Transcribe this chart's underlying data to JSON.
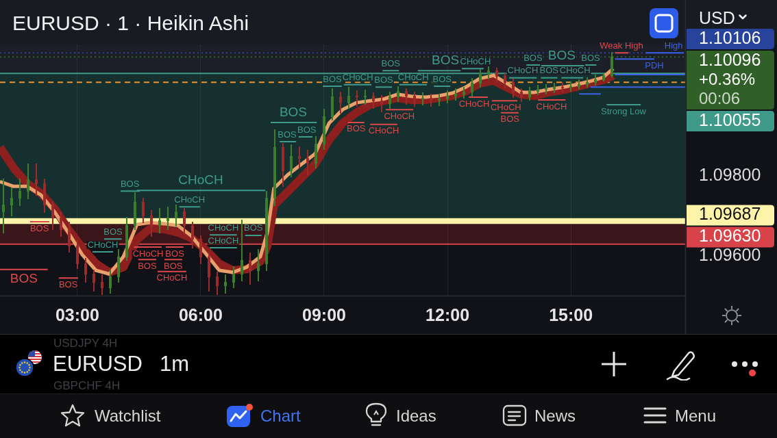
{
  "chart_data": {
    "type": "candlestick",
    "title": "EURUSD · 1 · Heikin Ashi",
    "x": [
      1.2,
      1.4,
      1.6,
      1.8,
      2,
      2.2,
      2.4,
      2.6,
      2.8,
      3,
      3.2,
      3.4,
      3.6,
      3.8,
      4,
      4.2,
      4.4,
      4.6,
      4.8,
      5,
      5.2,
      5.4,
      5.6,
      5.8,
      6,
      6.2,
      6.4,
      6.6,
      6.8,
      7,
      7.2,
      7.4,
      7.6,
      7.8,
      8,
      8.2,
      8.4,
      8.6,
      8.8,
      9,
      9.2,
      9.4,
      9.6,
      9.8,
      10,
      10.2,
      10.4,
      10.6,
      10.8,
      11,
      11.2,
      11.4,
      11.6,
      11.8,
      12,
      12.2,
      12.4,
      12.6,
      12.8,
      13,
      13.2,
      13.4,
      13.6,
      13.8,
      14,
      14.2,
      14.4,
      14.6,
      14.8,
      15,
      15.2,
      15.4,
      15.6,
      15.8,
      16
    ],
    "ohlc": [
      [
        1.0971,
        1.09791,
        1.09659,
        1.09727
      ],
      [
        1.09727,
        1.09769,
        1.09701,
        1.09744
      ],
      [
        1.09744,
        1.09791,
        1.09727,
        1.09761
      ],
      [
        1.09761,
        1.09829,
        1.09744,
        1.09791
      ],
      [
        1.09791,
        1.09829,
        1.09752,
        1.09781
      ],
      [
        1.09781,
        1.09791,
        1.0971,
        1.09727
      ],
      [
        1.09727,
        1.09735,
        1.09667,
        1.09696
      ],
      [
        1.09696,
        1.0971,
        1.0965,
        1.09667
      ],
      [
        1.09667,
        1.09684,
        1.09611,
        1.09625
      ],
      [
        1.09625,
        1.09638,
        1.0957,
        1.09582
      ],
      [
        1.09582,
        1.09594,
        1.09536,
        1.09556
      ],
      [
        1.09556,
        1.09565,
        1.09514,
        1.09536
      ],
      [
        1.09536,
        1.09553,
        1.09505,
        1.09522
      ],
      [
        1.09522,
        1.09565,
        1.09509,
        1.09548
      ],
      [
        1.09548,
        1.09616,
        1.09536,
        1.09599
      ],
      [
        1.09599,
        1.09696,
        1.0959,
        1.09676
      ],
      [
        1.09676,
        1.09757,
        1.09667,
        1.09735
      ],
      [
        1.09735,
        1.09744,
        1.09684,
        1.09701
      ],
      [
        1.09701,
        1.09713,
        1.0965,
        1.09676
      ],
      [
        1.09676,
        1.09718,
        1.09659,
        1.09689
      ],
      [
        1.09689,
        1.09722,
        1.09667,
        1.09696
      ],
      [
        1.09696,
        1.09727,
        1.09676,
        1.0971
      ],
      [
        1.0971,
        1.09718,
        1.09655,
        1.09676
      ],
      [
        1.09676,
        1.09684,
        1.09621,
        1.09642
      ],
      [
        1.09642,
        1.0965,
        1.09582,
        1.09599
      ],
      [
        1.09599,
        1.09607,
        1.09514,
        1.09548
      ],
      [
        1.09548,
        1.0956,
        1.09505,
        1.09526
      ],
      [
        1.09526,
        1.09553,
        1.09509,
        1.09536
      ],
      [
        1.09536,
        1.09573,
        1.09522,
        1.09556
      ],
      [
        1.09556,
        1.09689,
        1.09539,
        1.0959
      ],
      [
        1.0959,
        1.09607,
        1.09531,
        1.09565
      ],
      [
        1.09565,
        1.09616,
        1.09539,
        1.09582
      ],
      [
        1.09582,
        1.09761,
        1.09565,
        1.09744
      ],
      [
        1.09744,
        1.09914,
        1.09727,
        1.09871
      ],
      [
        1.09871,
        1.0988,
        1.09774,
        1.09812
      ],
      [
        1.09812,
        1.09877,
        1.09798,
        1.09849
      ],
      [
        1.09849,
        1.09871,
        1.0982,
        1.09843
      ],
      [
        1.09843,
        1.09863,
        1.09803,
        1.09832
      ],
      [
        1.09832,
        1.09897,
        1.0982,
        1.0988
      ],
      [
        1.0988,
        1.09965,
        1.09866,
        1.09948
      ],
      [
        1.09948,
        1.10016,
        1.0994,
        1.09996
      ],
      [
        1.09996,
        1.10008,
        1.09957,
        1.09982
      ],
      [
        1.09982,
        1.1002,
        1.09969,
        1.09999
      ],
      [
        1.09999,
        1.10011,
        1.09974,
        1.09996
      ],
      [
        1.09996,
        1.10013,
        1.09979,
        1.09999
      ],
      [
        1.09999,
        1.10006,
        1.09969,
        1.09986
      ],
      [
        1.09986,
        1.09999,
        1.0996,
        1.09979
      ],
      [
        1.09979,
        1.10008,
        1.09969,
        1.09996
      ],
      [
        1.09996,
        1.10021,
        1.09986,
        1.10011
      ],
      [
        1.10011,
        1.10016,
        1.09979,
        1.09999
      ],
      [
        1.09999,
        1.10008,
        1.09974,
        1.09991
      ],
      [
        1.09991,
        1.10006,
        1.09977,
        1.09994
      ],
      [
        1.09994,
        1.10003,
        1.09974,
        1.09989
      ],
      [
        1.09989,
        1.10003,
        1.09975,
        1.09991
      ],
      [
        1.09991,
        1.10011,
        1.09982,
        1.09999
      ],
      [
        1.09999,
        1.10016,
        1.09989,
        1.10004
      ],
      [
        1.10004,
        1.1002,
        1.09994,
        1.10008
      ],
      [
        1.10008,
        1.10042,
        1.09999,
        1.1003
      ],
      [
        1.1003,
        1.10064,
        1.10021,
        1.10054
      ],
      [
        1.10054,
        1.10071,
        1.10042,
        1.10062
      ],
      [
        1.10062,
        1.10067,
        1.10033,
        1.10047
      ],
      [
        1.10047,
        1.10054,
        1.1002,
        1.10033
      ],
      [
        1.10033,
        1.1004,
        1.09996,
        1.10008
      ],
      [
        1.10008,
        1.10016,
        1.09986,
        1.09996
      ],
      [
        1.09996,
        1.1002,
        1.09989,
        1.10011
      ],
      [
        1.10011,
        1.10025,
        1.10003,
        1.10016
      ],
      [
        1.10016,
        1.10027,
        1.10004,
        1.10018
      ],
      [
        1.10018,
        1.1003,
        1.10008,
        1.10021
      ],
      [
        1.10021,
        1.10032,
        1.1001,
        1.1002
      ],
      [
        1.1002,
        1.10033,
        1.10011,
        1.10023
      ],
      [
        1.10023,
        1.10038,
        1.10016,
        1.10028
      ],
      [
        1.10028,
        1.10044,
        1.10021,
        1.10033
      ],
      [
        1.10033,
        1.1005,
        1.10027,
        1.1004
      ],
      [
        1.1004,
        1.10054,
        1.10037,
        1.1005
      ],
      [
        1.1005,
        1.10106,
        1.10047,
        1.10096
      ]
    ],
    "colors": [
      "#3b7f2d",
      "#3b7f2d",
      "#3b7f2d",
      "#3b7f2d",
      "#9e2b2b",
      "#9e2b2b",
      "#9e2b2b",
      "#9e2b2b",
      "#9e2b2b",
      "#9e2b2b",
      "#9e2b2b",
      "#9e2b2b",
      "#9e2b2b",
      "#3b7f2d",
      "#3b7f2d",
      "#3b7f2d",
      "#3b7f2d",
      "#9e2b2b",
      "#9e2b2b",
      "#3b7f2d",
      "#3b7f2d",
      "#3b7f2d",
      "#9e2b2b",
      "#9e2b2b",
      "#9e2b2b",
      "#9e2b2b",
      "#9e2b2b",
      "#3b7f2d",
      "#3b7f2d",
      "#3b7f2d",
      "#9e2b2b",
      "#3b7f2d",
      "#3b7f2d",
      "#3b7f2d",
      "#9e2b2b",
      "#3b7f2d",
      "#9e2b2b",
      "#9e2b2b",
      "#3b7f2d",
      "#3b7f2d",
      "#3b7f2d",
      "#9e2b2b",
      "#3b7f2d",
      "#9e2b2b",
      "#3b7f2d",
      "#9e2b2b",
      "#9e2b2b",
      "#3b7f2d",
      "#3b7f2d",
      "#9e2b2b",
      "#9e2b2b",
      "#3b7f2d",
      "#9e2b2b",
      "#3b7f2d",
      "#3b7f2d",
      "#3b7f2d",
      "#3b7f2d",
      "#3b7f2d",
      "#3b7f2d",
      "#3b7f2d",
      "#9e2b2b",
      "#9e2b2b",
      "#9e2b2b",
      "#9e2b2b",
      "#3b7f2d",
      "#3b7f2d",
      "#3b7f2d",
      "#3b7f2d",
      "#9e2b2b",
      "#3b7f2d",
      "#3b7f2d",
      "#3b7f2d",
      "#3b7f2d",
      "#3b7f2d",
      "#3b7f2d"
    ],
    "series": [
      {
        "type": "line",
        "color": "#8e1f1f",
        "x": [
          1.12,
          1.45,
          1.78,
          2.12,
          2.45,
          2.78,
          3.12,
          3.45,
          3.78,
          4.12,
          4.45,
          4.78,
          5.12,
          5.45,
          5.78,
          6.12,
          6.45,
          6.78,
          7.12,
          7.45,
          7.62,
          7.78,
          8.12,
          8.45,
          8.78,
          9.12,
          9.45,
          9.78,
          10.12,
          10.45,
          10.78,
          11.12,
          11.45,
          11.78,
          12.12,
          12.45,
          12.78,
          13.12,
          13.45,
          13.78,
          14.12,
          14.45,
          14.78,
          15.12,
          15.45,
          15.78,
          16.03
        ],
        "values": [
          1.09871,
          1.0982,
          1.09781,
          1.09756,
          1.09718,
          1.09667,
          1.09621,
          1.09582,
          1.0956,
          1.09573,
          1.09642,
          1.0967,
          1.09667,
          1.09659,
          1.09645,
          1.09616,
          1.09582,
          1.09565,
          1.09568,
          1.09587,
          1.09625,
          1.09727,
          1.09761,
          1.09795,
          1.09829,
          1.09889,
          1.09931,
          1.09957,
          1.09977,
          1.09987,
          1.09994,
          1.09989,
          1.09989,
          1.09994,
          1.09999,
          1.10011,
          1.1003,
          1.10037,
          1.1002,
          1.10003,
          1.09999,
          1.10008,
          1.10013,
          1.10021,
          1.1003,
          1.10038,
          1.1005
        ]
      },
      {
        "type": "line",
        "color": "#e8a06c",
        "x": [
          1.12,
          1.45,
          1.78,
          2.12,
          2.45,
          2.78,
          3.12,
          3.45,
          3.78,
          4.12,
          4.45,
          4.78,
          5.12,
          5.45,
          5.78,
          6.12,
          6.45,
          6.78,
          7.12,
          7.45,
          7.62,
          7.78,
          8.12,
          8.45,
          8.78,
          9.12,
          9.45,
          9.78,
          10.12,
          10.45,
          10.78,
          11.12,
          11.45,
          11.78,
          12.12,
          12.45,
          12.78,
          13.12,
          13.45,
          13.78,
          14.12,
          14.45,
          14.78,
          15.12,
          15.45,
          15.78,
          16.03
        ],
        "values": [
          1.09786,
          1.09774,
          1.09774,
          1.09752,
          1.0971,
          1.09659,
          1.09604,
          1.09565,
          1.09556,
          1.09599,
          1.09679,
          1.09684,
          1.09681,
          1.09676,
          1.0965,
          1.09607,
          1.09565,
          1.0956,
          1.09573,
          1.09599,
          1.09659,
          1.09769,
          1.09803,
          1.09829,
          1.09855,
          1.09931,
          1.09965,
          1.09982,
          1.09987,
          1.09991,
          1.10003,
          1.09998,
          1.09996,
          1.09999,
          1.10006,
          1.10021,
          1.10042,
          1.1005,
          1.1003,
          1.10008,
          1.10008,
          1.10015,
          1.1002,
          1.10027,
          1.10035,
          1.10045,
          1.10067
        ]
      },
      {
        "type": "line",
        "color": "#3f9c8c",
        "x": [
          3.37,
          3.62,
          3.87,
          null,
          3.65,
          3.87,
          4.08,
          null,
          4.05,
          4.28,
          4.52,
          null,
          4.45,
          6.0,
          7.57,
          null,
          5.48,
          5.73,
          5.98,
          null,
          6.22,
          6.55,
          6.88,
          null,
          6.22,
          6.55,
          6.88,
          null,
          7.08,
          7.28,
          7.48,
          null,
          7.7,
          8.25,
          8.82,
          null,
          7.92,
          8.1,
          8.32,
          null,
          8.38,
          8.58,
          8.72,
          null,
          8.97,
          9.2,
          9.43,
          null,
          9.48,
          9.82,
          10.15,
          null,
          10.25,
          10.45,
          10.65,
          null,
          10.42,
          10.62,
          10.82,
          null,
          10.83,
          11.17,
          11.5,
          null,
          11.28,
          11.95,
          12.32,
          null,
          11.67,
          11.87,
          12.07,
          null,
          12.35,
          12.68,
          12.88,
          null,
          13.5,
          13.83,
          14.17,
          null,
          13.92,
          14.08,
          14.25,
          null,
          14.27,
          14.47,
          14.67,
          null,
          14.28,
          14.78,
          15.32,
          null,
          14.77,
          15.1,
          15.3,
          null,
          15.35,
          15.48,
          15.62,
          null,
          15.87,
          16.28,
          16.7
        ],
        "values": [
          1.09611,
          1.09611,
          1.09611,
          null,
          1.09643,
          1.09643,
          1.09643,
          null,
          1.09762,
          1.09762,
          1.09762,
          null,
          1.09764,
          1.09764,
          1.09764,
          null,
          1.09723,
          1.09723,
          1.09723,
          null,
          1.09653,
          1.09653,
          1.09653,
          null,
          1.09621,
          1.09621,
          1.09621,
          null,
          1.09652,
          1.09652,
          1.09652,
          null,
          1.09933,
          1.09933,
          1.09933,
          null,
          1.09885,
          1.09885,
          1.09885,
          null,
          1.09897,
          1.09897,
          1.09897,
          null,
          1.10023,
          1.10023,
          1.10023,
          null,
          1.10027,
          1.10027,
          1.10027,
          null,
          1.10021,
          1.10021,
          1.10021,
          null,
          1.10062,
          1.10062,
          1.10062,
          null,
          1.10027,
          1.10027,
          1.10027,
          null,
          1.10062,
          1.10062,
          1.10062,
          null,
          1.10023,
          1.10023,
          1.10023,
          null,
          1.10067,
          1.10067,
          1.10067,
          null,
          1.10044,
          1.10044,
          1.10044,
          null,
          1.10076,
          1.10076,
          1.10076,
          null,
          1.10044,
          1.10044,
          1.10044,
          null,
          1.10074,
          1.10074,
          1.10074,
          null,
          1.10044,
          1.10044,
          1.10044,
          null,
          1.10076,
          1.10076,
          1.10076,
          null,
          1.09977,
          1.09977,
          1.09977
        ],
        "value_labels": [
          null,
          "CHoCH",
          null,
          null,
          null,
          "BOS",
          null,
          null,
          null,
          "BOS",
          null,
          null,
          null,
          "CHoCH",
          null,
          null,
          null,
          "CHoCH",
          null,
          null,
          null,
          "CHoCH",
          null,
          null,
          null,
          "CHoCH",
          null,
          null,
          null,
          "BOS",
          null,
          null,
          null,
          "BOS",
          null,
          null,
          null,
          "BOS",
          null,
          null,
          null,
          "BOS",
          null,
          null,
          null,
          "BOS",
          null,
          null,
          null,
          "CHoCH",
          null,
          null,
          null,
          "BOS",
          null,
          null,
          null,
          "BOS",
          null,
          null,
          null,
          "CHoCH",
          null,
          null,
          null,
          "BOS",
          null,
          null,
          null,
          "BOS",
          null,
          null,
          null,
          "CHoCH",
          null,
          null,
          null,
          "CHoCH",
          null,
          null,
          null,
          "BOS",
          null,
          null,
          null,
          "BOS",
          null,
          null,
          null,
          "BOS",
          null,
          null,
          null,
          "CHoCH",
          null,
          null,
          null,
          "BOS",
          null,
          null,
          null,
          "Strong Low",
          null
        ]
      },
      {
        "type": "line",
        "color": "#e0474c",
        "x": [
          1.12,
          1.7,
          2.28,
          null,
          1.85,
          2.08,
          2.32,
          null,
          2.55,
          2.78,
          3.02,
          null,
          4.38,
          4.72,
          5.05,
          null,
          4.48,
          4.7,
          4.92,
          null,
          4.95,
          5.3,
          5.65,
          null,
          5.12,
          5.33,
          5.55,
          null,
          5.15,
          5.37,
          5.58,
          null,
          9.58,
          9.78,
          9.98,
          null,
          10.12,
          10.45,
          10.78,
          null,
          10.5,
          10.83,
          11.17,
          null,
          12.52,
          12.65,
          12.98,
          null,
          13.08,
          13.42,
          13.7,
          null,
          13.3,
          13.52,
          13.73,
          null,
          14.2,
          14.53,
          14.87,
          null,
          16.07,
          16.23,
          16.4
        ],
        "values": [
          1.09567,
          1.09567,
          1.09567,
          null,
          1.09686,
          1.09686,
          1.09686,
          null,
          1.09546,
          1.09546,
          1.09546,
          null,
          1.09623,
          1.09623,
          1.09623,
          null,
          1.09592,
          1.09592,
          1.09592,
          null,
          1.09562,
          1.09562,
          1.09562,
          null,
          1.09592,
          1.09592,
          1.09592,
          null,
          1.09623,
          1.09623,
          1.09623,
          null,
          1.09933,
          1.09933,
          1.09933,
          null,
          1.09928,
          1.09928,
          1.09928,
          null,
          1.09965,
          1.09965,
          1.09965,
          null,
          1.09996,
          1.09996,
          1.09996,
          null,
          1.09987,
          1.09987,
          1.09987,
          null,
          1.09957,
          1.09957,
          1.09957,
          null,
          1.09989,
          1.09989,
          1.09989,
          null,
          1.10106,
          1.10106,
          1.10106
        ],
        "value_labels": [
          null,
          "BOS",
          null,
          null,
          null,
          "BOS",
          null,
          null,
          null,
          "BOS",
          null,
          null,
          null,
          "CHoCH",
          null,
          null,
          null,
          "BOS",
          null,
          null,
          null,
          "CHoCH",
          null,
          null,
          null,
          "BOS",
          null,
          null,
          null,
          "BOS",
          null,
          null,
          null,
          "BOS",
          null,
          null,
          null,
          "CHoCH",
          null,
          null,
          null,
          "CHoCH",
          null,
          null,
          null,
          "CHoCH",
          null,
          null,
          null,
          "CHoCH",
          null,
          null,
          null,
          "BOS",
          null,
          null,
          null,
          "CHoCH",
          null,
          null,
          null,
          "Weak High",
          null
        ]
      },
      {
        "type": "line",
        "color": "#3b62e6",
        "x": [
          15.2,
          15.73,
          null,
          15.48,
          17.78,
          null,
          16.07,
          17.78,
          null,
          16.07,
          16.55,
          17.03,
          null,
          16.82,
          17.5,
          17.75
        ],
        "values": [
          1.10004,
          1.10004,
          null,
          1.10021,
          1.10021,
          null,
          1.10052,
          1.10052,
          null,
          1.10091,
          1.10091,
          1.10091,
          null,
          1.10106,
          1.10106,
          1.10106
        ],
        "value_labels": [
          null,
          null,
          null,
          null,
          null,
          null,
          null,
          null,
          null,
          null,
          null,
          "PDH",
          null,
          null,
          "High",
          null
        ]
      }
    ],
    "xlim": [
      1.12,
      17.78
    ],
    "xticks": [
      {
        "value": 3,
        "label": "03:00"
      },
      {
        "value": 6,
        "label": "06:00"
      },
      {
        "value": 9,
        "label": "09:00"
      },
      {
        "value": 12,
        "label": "12:00"
      },
      {
        "value": 15,
        "label": "15:00"
      }
    ],
    "ylim": [
      1.09502,
      1.10127
    ],
    "yticks": [
      {
        "value": 1.096,
        "label": "1.09600"
      },
      {
        "value": 1.098,
        "label": "1.09800"
      }
    ],
    "grid": "x",
    "ref_lines": [
      {
        "axis": "y",
        "value": 1.10106,
        "label": "1.10106",
        "color": "#27439c",
        "line_style": "dotted"
      },
      {
        "axis": "y",
        "value": 1.10096,
        "label": "1.10096\n+0.36%\n00:06",
        "color": "#305f27",
        "line_style": "dotted"
      },
      {
        "axis": "y",
        "value": 1.10055,
        "label": "1.10055",
        "color": "#3f9a89",
        "line_style": "solid"
      },
      {
        "axis": "y",
        "value": 1.10033,
        "color": "#f0922e",
        "line_style": "dashed"
      },
      {
        "axis": "y",
        "value": 1.09687,
        "label": "1.09687",
        "color": "#fdf3a9",
        "line_style": "solid"
      },
      {
        "axis": "y",
        "value": 1.0963,
        "label": "1.09630",
        "color": "#d8434a",
        "line_style": "solid"
      }
    ],
    "bands": [
      {
        "axis": "y",
        "from": 1.10055,
        "to": 1.10127,
        "color": "#1c1f28"
      },
      {
        "axis": "y",
        "from": 1.09695,
        "to": 1.10055,
        "color": "#15302e"
      },
      {
        "axis": "y",
        "from": 1.0968,
        "to": 1.09695,
        "color": "#fdf2a9"
      },
      {
        "axis": "y",
        "from": 1.0963,
        "to": 1.0968,
        "color": "#3a1519"
      }
    ],
    "annotations": [
      "USD",
      "EURUSD",
      "1m",
      "USDJPY 4H",
      "GBPCHF 4H",
      "Watchlist",
      "Chart",
      "Ideas",
      "News",
      "Menu"
    ]
  }
}
